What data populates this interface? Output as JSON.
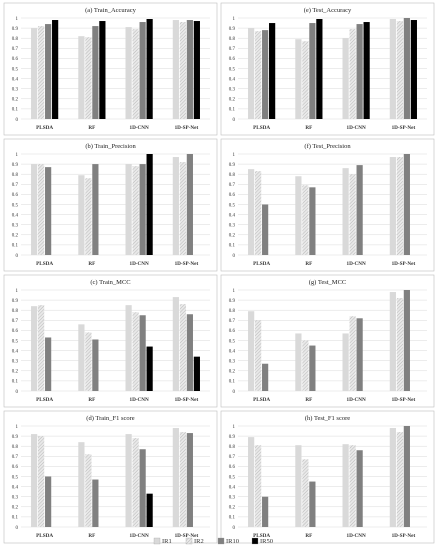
{
  "colors": {
    "IR1": "#d9d9d9",
    "IR2": "#dcdcdc",
    "IR10": "#808080",
    "IR50": "#000000",
    "grid": "#d9d9d9"
  },
  "chart_data": [
    {
      "type": "bar",
      "title": "(a) Train_Accuracy",
      "categories": [
        "PLSDA",
        "RF",
        "1D-CNN",
        "1D-SP-Net"
      ],
      "ylim": [
        0,
        1
      ],
      "yticks": [
        "0",
        "0.1",
        "0.2",
        "0.3",
        "0.4",
        "0.5",
        "0.6",
        "0.7",
        "0.8",
        "0.9",
        "1"
      ],
      "series": [
        {
          "name": "IR1",
          "values": [
            0.9,
            0.82,
            0.91,
            0.98
          ]
        },
        {
          "name": "IR2",
          "values": [
            0.92,
            0.81,
            0.89,
            0.96
          ]
        },
        {
          "name": "IR10",
          "values": [
            0.94,
            0.92,
            0.96,
            0.98
          ]
        },
        {
          "name": "IR50",
          "values": [
            0.98,
            0.97,
            0.99,
            0.97
          ]
        }
      ]
    },
    {
      "type": "bar",
      "title": "(e) Test_Accuracy",
      "categories": [
        "PLSDA",
        "RF",
        "1D-CNN",
        "1D-SP-Net"
      ],
      "ylim": [
        0,
        1
      ],
      "yticks": [
        "0",
        "0.1",
        "0.2",
        "0.3",
        "0.4",
        "0.5",
        "0.6",
        "0.7",
        "0.8",
        "0.9",
        "1"
      ],
      "series": [
        {
          "name": "IR1",
          "values": [
            0.9,
            0.79,
            0.8,
            0.99
          ]
        },
        {
          "name": "IR2",
          "values": [
            0.87,
            0.77,
            0.89,
            0.97
          ]
        },
        {
          "name": "IR10",
          "values": [
            0.88,
            0.95,
            0.94,
            1.0
          ]
        },
        {
          "name": "IR50",
          "values": [
            0.95,
            0.99,
            0.96,
            0.98
          ]
        }
      ]
    },
    {
      "type": "bar",
      "title": "(b) Train_Precision",
      "categories": [
        "PLSDA",
        "RF",
        "1D-CNN",
        "1D-SP-Net"
      ],
      "ylim": [
        0,
        1
      ],
      "yticks": [
        "0",
        "0.1",
        "0.2",
        "0.3",
        "0.4",
        "0.5",
        "0.6",
        "0.7",
        "0.8",
        "0.9",
        "1"
      ],
      "series": [
        {
          "name": "IR1",
          "values": [
            0.9,
            0.79,
            0.9,
            0.97
          ]
        },
        {
          "name": "IR2",
          "values": [
            0.9,
            0.76,
            0.88,
            0.92
          ]
        },
        {
          "name": "IR10",
          "values": [
            0.87,
            0.9,
            0.9,
            1.0
          ]
        },
        {
          "name": "IR50",
          "values": [
            null,
            null,
            1.0,
            null
          ]
        }
      ]
    },
    {
      "type": "bar",
      "title": "(f) Test_Precision",
      "categories": [
        "PLSDA",
        "RF",
        "1D-CNN",
        "1D-SP-Net"
      ],
      "ylim": [
        0,
        1
      ],
      "yticks": [
        "0",
        "0.1",
        "0.2",
        "0.3",
        "0.4",
        "0.5",
        "0.6",
        "0.7",
        "0.8",
        "0.9",
        "1"
      ],
      "series": [
        {
          "name": "IR1",
          "values": [
            0.85,
            0.78,
            0.86,
            0.97
          ]
        },
        {
          "name": "IR2",
          "values": [
            0.83,
            0.69,
            0.8,
            0.97
          ]
        },
        {
          "name": "IR10",
          "values": [
            0.5,
            0.67,
            0.89,
            1.0
          ]
        },
        {
          "name": "IR50",
          "values": [
            null,
            null,
            null,
            null
          ]
        }
      ]
    },
    {
      "type": "bar",
      "title": "(c) Train_MCC",
      "categories": [
        "PLSDA",
        "RF",
        "1D-CNN",
        "1D-SP-Net"
      ],
      "ylim": [
        0,
        1
      ],
      "yticks": [
        "0",
        "0.1",
        "0.2",
        "0.3",
        "0.4",
        "0.5",
        "0.6",
        "0.7",
        "0.8",
        "0.9",
        "1"
      ],
      "series": [
        {
          "name": "IR1",
          "values": [
            0.84,
            0.66,
            0.85,
            0.93
          ]
        },
        {
          "name": "IR2",
          "values": [
            0.85,
            0.58,
            0.78,
            0.86
          ]
        },
        {
          "name": "IR10",
          "values": [
            0.53,
            0.51,
            0.75,
            0.76
          ]
        },
        {
          "name": "IR50",
          "values": [
            null,
            null,
            0.44,
            0.34
          ]
        }
      ]
    },
    {
      "type": "bar",
      "title": "(g) Test_MCC",
      "categories": [
        "PLSDA",
        "RF",
        "1D-CNN",
        "1D-SP-Net"
      ],
      "ylim": [
        0,
        1
      ],
      "yticks": [
        "0",
        "0.1",
        "0.2",
        "0.3",
        "0.4",
        "0.5",
        "0.6",
        "0.7",
        "0.8",
        "0.9",
        "1"
      ],
      "series": [
        {
          "name": "IR1",
          "values": [
            0.79,
            0.57,
            0.57,
            0.98
          ]
        },
        {
          "name": "IR2",
          "values": [
            0.7,
            0.5,
            0.74,
            0.92
          ]
        },
        {
          "name": "IR10",
          "values": [
            0.27,
            0.45,
            0.72,
            1.0
          ]
        },
        {
          "name": "IR50",
          "values": [
            null,
            null,
            null,
            null
          ]
        }
      ]
    },
    {
      "type": "bar",
      "title": "(d) Train_F1 score",
      "categories": [
        "PLSDA",
        "RF",
        "1D-CNN",
        "1D-SP-Net"
      ],
      "ylim": [
        0,
        1
      ],
      "yticks": [
        "0",
        "0.1",
        "0.2",
        "0.3",
        "0.4",
        "0.5",
        "0.6",
        "0.7",
        "0.8",
        "0.9",
        "1"
      ],
      "series": [
        {
          "name": "IR1",
          "values": [
            0.92,
            0.84,
            0.92,
            0.98
          ]
        },
        {
          "name": "IR2",
          "values": [
            0.9,
            0.72,
            0.88,
            0.94
          ]
        },
        {
          "name": "IR10",
          "values": [
            0.5,
            0.47,
            0.77,
            0.93
          ]
        },
        {
          "name": "IR50",
          "values": [
            null,
            null,
            0.33,
            null
          ]
        }
      ]
    },
    {
      "type": "bar",
      "title": "(h) Test_F1 score",
      "categories": [
        "PLSDA",
        "RF",
        "1D-CNN",
        "1D-SP-Net"
      ],
      "ylim": [
        0,
        1
      ],
      "yticks": [
        "0",
        "0.1",
        "0.2",
        "0.3",
        "0.4",
        "0.5",
        "0.6",
        "0.7",
        "0.8",
        "0.9",
        "1"
      ],
      "series": [
        {
          "name": "IR1",
          "values": [
            0.89,
            0.81,
            0.82,
            0.98
          ]
        },
        {
          "name": "IR2",
          "values": [
            0.81,
            0.67,
            0.81,
            0.94
          ]
        },
        {
          "name": "IR10",
          "values": [
            0.3,
            0.45,
            0.76,
            1.0
          ]
        },
        {
          "name": "IR50",
          "values": [
            null,
            null,
            null,
            null
          ]
        }
      ]
    }
  ],
  "legend": {
    "items": [
      "IR1",
      "IR2",
      "IR10",
      "IR50"
    ]
  }
}
